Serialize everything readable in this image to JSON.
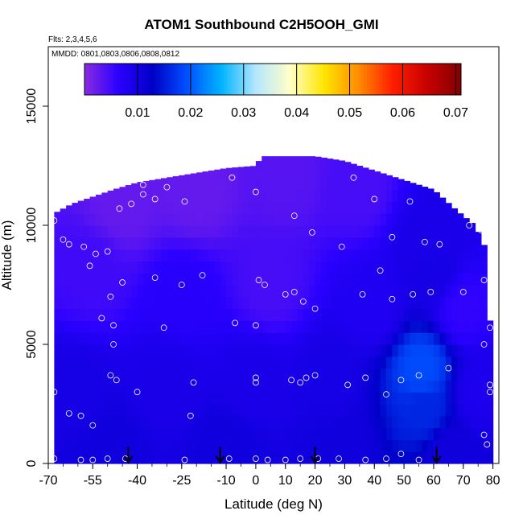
{
  "chart_data": {
    "type": "heatmap",
    "title": "ATOM1 Southbound C2H5OOH_GMI",
    "flights_note": "Flts: 2,3,4,5,6",
    "dates_note": "MMDD: 0801,0803,0806,0808,0812",
    "xlabel": "Latitude (deg N)",
    "ylabel": "Altitude (m)",
    "xlim": [
      -70,
      82
    ],
    "ylim": [
      0,
      17500
    ],
    "x_ticks": [
      -70,
      -55,
      -40,
      -25,
      -10,
      0,
      10,
      20,
      30,
      40,
      50,
      60,
      70,
      80
    ],
    "x_tick_labels": [
      "-70",
      "-55",
      "-40",
      "-25",
      "-10",
      "0",
      "10",
      "20",
      "30",
      "40",
      "50",
      "60",
      "70",
      "80"
    ],
    "y_ticks": [
      0,
      5000,
      10000,
      15000
    ],
    "y_tick_labels": [
      "0",
      "5000",
      "10000",
      "15000"
    ],
    "colorbar": {
      "range": [
        0,
        0.071
      ],
      "ticks": [
        0.01,
        0.02,
        0.03,
        0.04,
        0.05,
        0.06,
        0.07
      ],
      "tick_labels": [
        "0.01",
        "0.02",
        "0.03",
        "0.04",
        "0.05",
        "0.06",
        "0.07"
      ],
      "colors": [
        "#8a2be2",
        "#2a00ff",
        "#0000c8",
        "#0050ff",
        "#00b4ff",
        "#b4e6ff",
        "#ffffc8",
        "#ffe600",
        "#ff8c00",
        "#ff1e00",
        "#c80000",
        "#820000"
      ]
    },
    "data_extent": {
      "top_altitude_by_latitude": [
        {
          "lat": -68,
          "alt": 10500
        },
        {
          "lat": -62,
          "alt": 10900
        },
        {
          "lat": -55,
          "alt": 11200
        },
        {
          "lat": -48,
          "alt": 11500
        },
        {
          "lat": -40,
          "alt": 11800
        },
        {
          "lat": -30,
          "alt": 12000
        },
        {
          "lat": -20,
          "alt": 12200
        },
        {
          "lat": -10,
          "alt": 12400
        },
        {
          "lat": 0,
          "alt": 12500
        },
        {
          "lat": 2,
          "alt": 12900
        },
        {
          "lat": 20,
          "alt": 12900
        },
        {
          "lat": 30,
          "alt": 12700
        },
        {
          "lat": 40,
          "alt": 12300
        },
        {
          "lat": 50,
          "alt": 11900
        },
        {
          "lat": 60,
          "alt": 11500
        },
        {
          "lat": 68,
          "alt": 10600
        },
        {
          "lat": 74,
          "alt": 10000
        },
        {
          "lat": 78,
          "alt": 8900
        },
        {
          "lat": 79,
          "alt": 6000
        }
      ]
    },
    "field": [
      {
        "lat": -45,
        "alt": 11000,
        "value": 0.0025
      },
      {
        "lat": -20,
        "alt": 11500,
        "value": 0.0025
      },
      {
        "lat": 10,
        "alt": 12000,
        "value": 0.0035
      },
      {
        "lat": 35,
        "alt": 11500,
        "value": 0.0045
      },
      {
        "lat": 58,
        "alt": 9500,
        "value": 0.009
      },
      {
        "lat": 60,
        "alt": 8000,
        "value": 0.0095
      },
      {
        "lat": -25,
        "alt": 7000,
        "value": 0.007
      },
      {
        "lat": -55,
        "alt": 8000,
        "value": 0.005
      },
      {
        "lat": 5,
        "alt": 7500,
        "value": 0.0045
      },
      {
        "lat": 40,
        "alt": 6500,
        "value": 0.008
      },
      {
        "lat": 70,
        "alt": 6500,
        "value": 0.006
      },
      {
        "lat": -60,
        "alt": 3000,
        "value": 0.0095
      },
      {
        "lat": -30,
        "alt": 3500,
        "value": 0.009
      },
      {
        "lat": 0,
        "alt": 3500,
        "value": 0.009
      },
      {
        "lat": 25,
        "alt": 3500,
        "value": 0.0095
      },
      {
        "lat": 56,
        "alt": 4000,
        "value": 0.019
      },
      {
        "lat": 57,
        "alt": 2200,
        "value": 0.016
      },
      {
        "lat": 75,
        "alt": 3000,
        "value": 0.0085
      },
      {
        "lat": -50,
        "alt": 500,
        "value": 0.0105
      },
      {
        "lat": -10,
        "alt": 500,
        "value": 0.0105
      },
      {
        "lat": 30,
        "alt": 500,
        "value": 0.0105
      },
      {
        "lat": 65,
        "alt": 500,
        "value": 0.0105
      }
    ],
    "flight_points": [
      {
        "lat": -68,
        "alt": 10200
      },
      {
        "lat": -65,
        "alt": 9400
      },
      {
        "lat": -63,
        "alt": 9200
      },
      {
        "lat": -58,
        "alt": 9100
      },
      {
        "lat": -56,
        "alt": 8300
      },
      {
        "lat": -54,
        "alt": 8800
      },
      {
        "lat": -50,
        "alt": 8900
      },
      {
        "lat": -49,
        "alt": 7000
      },
      {
        "lat": -48,
        "alt": 5800
      },
      {
        "lat": -48,
        "alt": 5000
      },
      {
        "lat": -49,
        "alt": 3700
      },
      {
        "lat": -47,
        "alt": 3500
      },
      {
        "lat": -52,
        "alt": 6100
      },
      {
        "lat": -45,
        "alt": 7600
      },
      {
        "lat": -46,
        "alt": 10700
      },
      {
        "lat": -42,
        "alt": 10900
      },
      {
        "lat": -38,
        "alt": 11300
      },
      {
        "lat": -34,
        "alt": 11100
      },
      {
        "lat": -30,
        "alt": 11600
      },
      {
        "lat": -24,
        "alt": 11000
      },
      {
        "lat": -34,
        "alt": 7800
      },
      {
        "lat": -25,
        "alt": 7500
      },
      {
        "lat": -18,
        "alt": 7900
      },
      {
        "lat": -31,
        "alt": 5700
      },
      {
        "lat": -21,
        "alt": 3400
      },
      {
        "lat": -22,
        "alt": 2000
      },
      {
        "lat": -40,
        "alt": 3000
      },
      {
        "lat": -68,
        "alt": 3000
      },
      {
        "lat": -63,
        "alt": 2100
      },
      {
        "lat": -59,
        "alt": 2000
      },
      {
        "lat": -55,
        "alt": 1600
      },
      {
        "lat": -38,
        "alt": 11700
      },
      {
        "lat": -8,
        "alt": 12000
      },
      {
        "lat": 0,
        "alt": 11400
      },
      {
        "lat": 1,
        "alt": 7700
      },
      {
        "lat": 3,
        "alt": 7500
      },
      {
        "lat": -7,
        "alt": 5900
      },
      {
        "lat": 0,
        "alt": 5800
      },
      {
        "lat": 0,
        "alt": 3600
      },
      {
        "lat": 0,
        "alt": 3400
      },
      {
        "lat": 12,
        "alt": 3500
      },
      {
        "lat": 15,
        "alt": 3400
      },
      {
        "lat": 17,
        "alt": 3600
      },
      {
        "lat": 20,
        "alt": 3700
      },
      {
        "lat": 13,
        "alt": 7200
      },
      {
        "lat": 10,
        "alt": 7100
      },
      {
        "lat": 16,
        "alt": 6800
      },
      {
        "lat": 20,
        "alt": 6500
      },
      {
        "lat": 13,
        "alt": 10400
      },
      {
        "lat": 19,
        "alt": 9700
      },
      {
        "lat": 29,
        "alt": 9100
      },
      {
        "lat": 33,
        "alt": 12000
      },
      {
        "lat": 40,
        "alt": 11100
      },
      {
        "lat": 42,
        "alt": 8100
      },
      {
        "lat": 36,
        "alt": 7100
      },
      {
        "lat": 46,
        "alt": 6900
      },
      {
        "lat": 53,
        "alt": 7100
      },
      {
        "lat": 59,
        "alt": 7200
      },
      {
        "lat": 70,
        "alt": 7200
      },
      {
        "lat": 77,
        "alt": 7700
      },
      {
        "lat": 46,
        "alt": 9500
      },
      {
        "lat": 52,
        "alt": 11000
      },
      {
        "lat": 57,
        "alt": 9300
      },
      {
        "lat": 62,
        "alt": 9200
      },
      {
        "lat": 67,
        "alt": 11400
      },
      {
        "lat": 72,
        "alt": 10000
      },
      {
        "lat": 76,
        "alt": 9800
      },
      {
        "lat": 79,
        "alt": 5700
      },
      {
        "lat": 77,
        "alt": 5000
      },
      {
        "lat": 79,
        "alt": 3300
      },
      {
        "lat": 79,
        "alt": 3000
      },
      {
        "lat": 77,
        "alt": 1200
      },
      {
        "lat": 78,
        "alt": 800
      },
      {
        "lat": 31,
        "alt": 3300
      },
      {
        "lat": 37,
        "alt": 3600
      },
      {
        "lat": 44,
        "alt": 2900
      },
      {
        "lat": 49,
        "alt": 3500
      },
      {
        "lat": 55,
        "alt": 3700
      },
      {
        "lat": 65,
        "alt": 4000
      },
      {
        "lat": 49,
        "alt": 400
      },
      {
        "lat": 44,
        "alt": 200
      },
      {
        "lat": 37,
        "alt": 150
      },
      {
        "lat": -68,
        "alt": 200
      },
      {
        "lat": -59,
        "alt": 150
      },
      {
        "lat": -55,
        "alt": 150
      },
      {
        "lat": -50,
        "alt": 200
      },
      {
        "lat": -44,
        "alt": 200
      },
      {
        "lat": -24,
        "alt": 150
      },
      {
        "lat": -9,
        "alt": 200
      },
      {
        "lat": 0,
        "alt": 200
      },
      {
        "lat": 4,
        "alt": 150
      },
      {
        "lat": 10,
        "alt": 150
      },
      {
        "lat": 15,
        "alt": 200
      },
      {
        "lat": 21,
        "alt": 200
      },
      {
        "lat": 28,
        "alt": 200
      },
      {
        "lat": 55,
        "alt": 150
      },
      {
        "lat": 26,
        "alt": 13300
      }
    ],
    "arrow_latitudes": [
      -43,
      -12,
      20,
      61
    ]
  }
}
